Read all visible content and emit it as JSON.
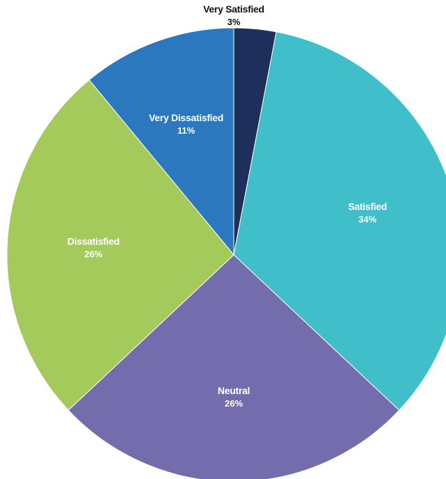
{
  "chart_data": {
    "type": "pie",
    "title": "",
    "start_angle_deg": 0,
    "direction": "clockwise",
    "slices": [
      {
        "label": "Very Satisfied",
        "percent_label": "3%",
        "value": 3,
        "color": "#1d2f5a",
        "label_color": "#111111",
        "label_outside": true
      },
      {
        "label": "Satisfied",
        "percent_label": "34%",
        "value": 34,
        "color": "#40bfcb",
        "label_color": "#ffffff",
        "label_outside": false
      },
      {
        "label": "Neutral",
        "percent_label": "26%",
        "value": 26,
        "color": "#736dad",
        "label_color": "#ffffff",
        "label_outside": false
      },
      {
        "label": "Dissatisfied",
        "percent_label": "26%",
        "value": 26,
        "color": "#a4ca5c",
        "label_color": "#ffffff",
        "label_outside": false
      },
      {
        "label": "Very Dissatisfied",
        "percent_label": "11%",
        "value": 11,
        "color": "#2b78bf",
        "label_color": "#ffffff",
        "label_outside": false
      }
    ]
  }
}
